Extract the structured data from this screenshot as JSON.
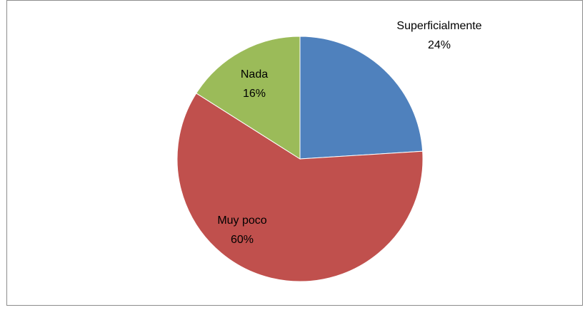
{
  "chart_data": {
    "type": "pie",
    "categories": [
      "Superficialmente",
      "Muy poco",
      "Nada"
    ],
    "values": [
      24,
      60,
      16
    ],
    "value_labels": [
      "24%",
      "60%",
      "16%"
    ],
    "colors": [
      "#4f81bd",
      "#c0504d",
      "#9bbb59"
    ]
  }
}
